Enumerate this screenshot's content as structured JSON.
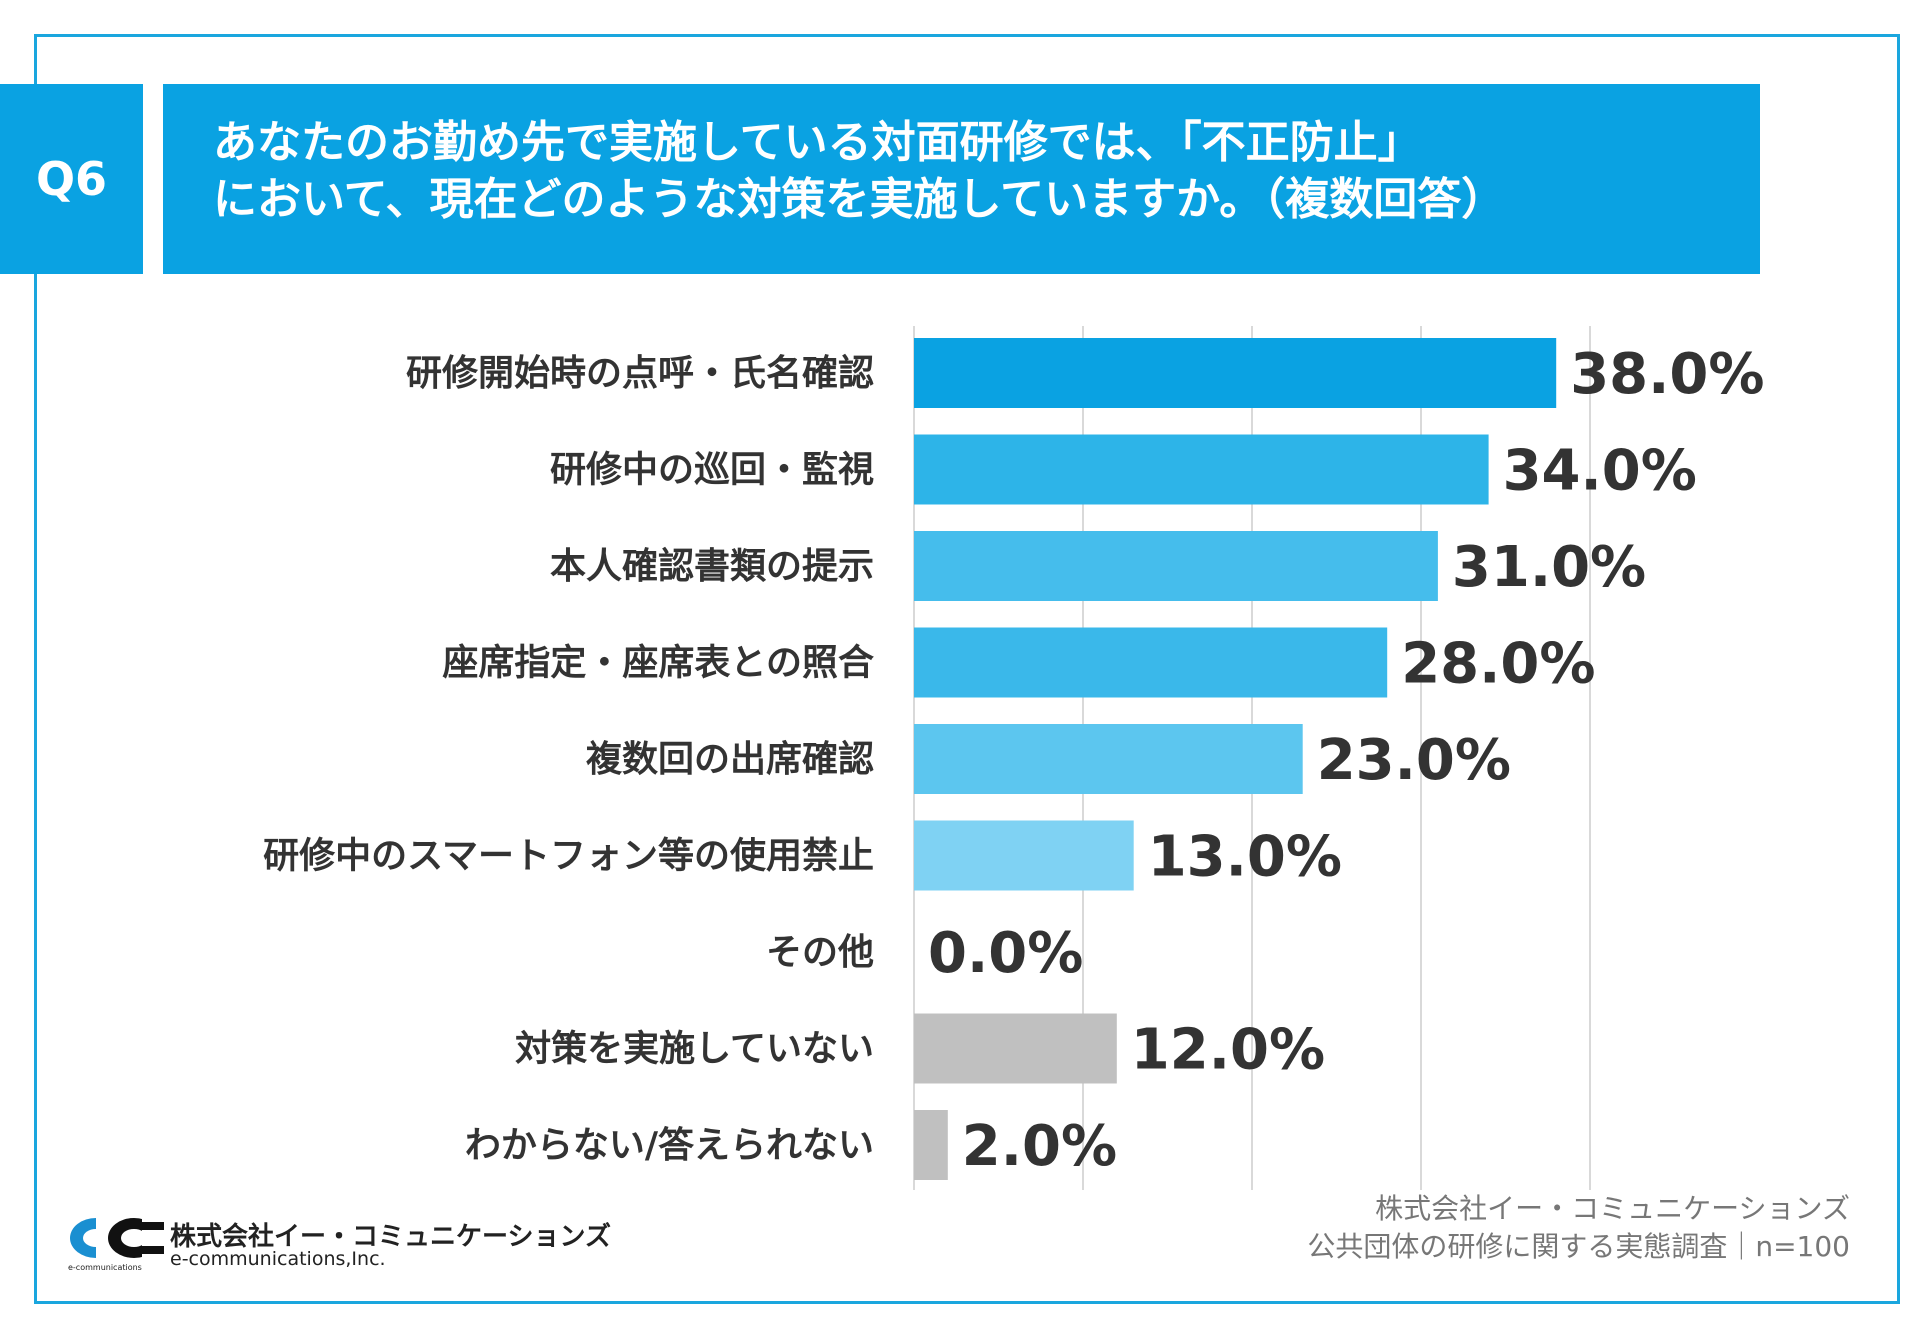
{
  "header": {
    "badge": "Q6",
    "title_line1": "あなたのお勤め先で実施している対面研修では、「不正防止」",
    "title_line2": "において、現在どのような対策を実施していますか。（複数回答）"
  },
  "chart_data": {
    "type": "bar",
    "orientation": "horizontal",
    "title": "あなたのお勤め先で実施している対面研修では、「不正防止」において、現在どのような対策を実施していますか。（複数回答）",
    "categories": [
      "研修開始時の点呼・氏名確認",
      "研修中の巡回・監視",
      "本人確認書類の提示",
      "座席指定・座席表との照合",
      "複数回の出席確認",
      "研修中のスマートフォン等の使用禁止",
      "その他",
      "対策を実施していない",
      "わからない/答えられない"
    ],
    "values": [
      38.0,
      34.0,
      31.0,
      28.0,
      23.0,
      13.0,
      0.0,
      12.0,
      2.0
    ],
    "value_labels": [
      "38.0%",
      "34.0%",
      "31.0%",
      "28.0%",
      "23.0%",
      "13.0%",
      "0.0%",
      "12.0%",
      "2.0%"
    ],
    "xlim": [
      0,
      40
    ],
    "grid": true,
    "unit": "%",
    "colors": [
      "#0aa2e2",
      "#2db4e8",
      "#45bdec",
      "#3ab8ea",
      "#5cc6ef",
      "#7fd2f3",
      "#7fd2f3",
      "#c0c0c0",
      "#c0c0c0"
    ]
  },
  "footer": {
    "credit_line1": "株式会社イー・コミュニケーションズ",
    "credit_line2": "公共団体の研修に関する実態調査｜n=100",
    "logo_jp": "株式会社イー・コミュニケーションズ",
    "logo_en": "e-communications,Inc.",
    "logo_small": "e-communications"
  }
}
